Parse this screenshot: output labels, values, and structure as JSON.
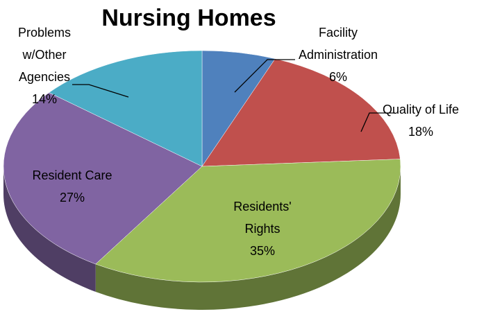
{
  "chart_data": {
    "type": "pie3d",
    "title": "Nursing Homes",
    "categories": [
      "Facility Administration",
      "Quality of Life",
      "Residents' Rights",
      "Resident Care",
      "Problems w/Other Agencies"
    ],
    "values": [
      6,
      18,
      35,
      27,
      14
    ],
    "value_labels": [
      "6%",
      "18%",
      "35%",
      "27%",
      "14%"
    ],
    "colors": [
      "#4f81bd",
      "#c0504d",
      "#9bbb59",
      "#8064a2",
      "#4bacc6"
    ]
  }
}
